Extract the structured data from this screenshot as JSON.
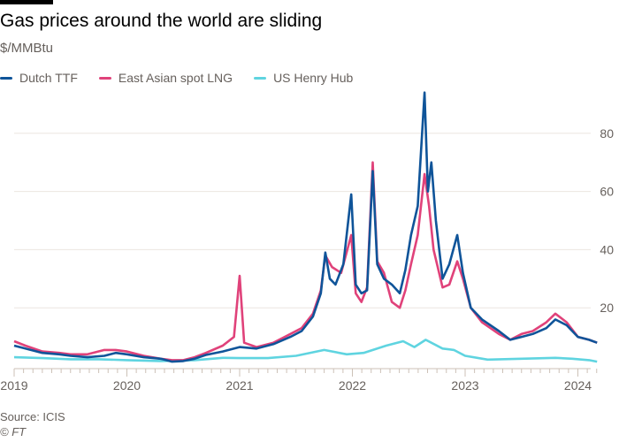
{
  "chart_data": {
    "type": "line",
    "title": "Gas prices around the world are sliding",
    "subtitle": "$/MMBtu",
    "xlabel": "",
    "ylabel": "",
    "xlim": [
      2019,
      2024.17
    ],
    "ylim": [
      0,
      95
    ],
    "x_ticks": [
      "2019",
      "2020",
      "2021",
      "2022",
      "2023",
      "2024"
    ],
    "y_ticks": [
      "20",
      "40",
      "60",
      "80"
    ],
    "grid": "horizontal",
    "legend_position": "top",
    "series": [
      {
        "name": "Dutch TTF",
        "color": "#0f5499",
        "points": [
          [
            2019.0,
            7
          ],
          [
            2019.1,
            6
          ],
          [
            2019.25,
            4.5
          ],
          [
            2019.4,
            4
          ],
          [
            2019.5,
            3.5
          ],
          [
            2019.65,
            3
          ],
          [
            2019.8,
            3.5
          ],
          [
            2019.9,
            4.5
          ],
          [
            2020.0,
            4
          ],
          [
            2020.15,
            3
          ],
          [
            2020.3,
            2.5
          ],
          [
            2020.4,
            1.5
          ],
          [
            2020.5,
            1.7
          ],
          [
            2020.6,
            2.5
          ],
          [
            2020.7,
            3.8
          ],
          [
            2020.85,
            5
          ],
          [
            2021.0,
            6.5
          ],
          [
            2021.15,
            6
          ],
          [
            2021.3,
            7.5
          ],
          [
            2021.45,
            10
          ],
          [
            2021.55,
            12
          ],
          [
            2021.65,
            17
          ],
          [
            2021.72,
            25
          ],
          [
            2021.76,
            39
          ],
          [
            2021.8,
            30
          ],
          [
            2021.85,
            28
          ],
          [
            2021.92,
            35
          ],
          [
            2021.99,
            59
          ],
          [
            2022.03,
            28
          ],
          [
            2022.08,
            25
          ],
          [
            2022.13,
            26
          ],
          [
            2022.18,
            67
          ],
          [
            2022.22,
            35
          ],
          [
            2022.28,
            30
          ],
          [
            2022.35,
            28
          ],
          [
            2022.42,
            25
          ],
          [
            2022.47,
            33
          ],
          [
            2022.52,
            45
          ],
          [
            2022.58,
            55
          ],
          [
            2022.64,
            94
          ],
          [
            2022.67,
            60
          ],
          [
            2022.7,
            70
          ],
          [
            2022.74,
            50
          ],
          [
            2022.8,
            30
          ],
          [
            2022.86,
            35
          ],
          [
            2022.93,
            45
          ],
          [
            2022.98,
            32
          ],
          [
            2023.05,
            20
          ],
          [
            2023.15,
            16
          ],
          [
            2023.3,
            12
          ],
          [
            2023.4,
            9
          ],
          [
            2023.5,
            10
          ],
          [
            2023.6,
            11
          ],
          [
            2023.72,
            13
          ],
          [
            2023.8,
            16
          ],
          [
            2023.9,
            14
          ],
          [
            2024.0,
            10
          ],
          [
            2024.1,
            9
          ],
          [
            2024.17,
            8
          ]
        ]
      },
      {
        "name": "East Asian spot LNG",
        "color": "#e0427a",
        "points": [
          [
            2019.0,
            8.5
          ],
          [
            2019.1,
            7
          ],
          [
            2019.25,
            5
          ],
          [
            2019.4,
            4.5
          ],
          [
            2019.5,
            4
          ],
          [
            2019.65,
            4
          ],
          [
            2019.8,
            5.5
          ],
          [
            2019.9,
            5.5
          ],
          [
            2020.0,
            5
          ],
          [
            2020.15,
            3.5
          ],
          [
            2020.3,
            2.5
          ],
          [
            2020.4,
            2
          ],
          [
            2020.5,
            2
          ],
          [
            2020.6,
            3
          ],
          [
            2020.7,
            4.5
          ],
          [
            2020.85,
            7
          ],
          [
            2020.95,
            10
          ],
          [
            2021.0,
            31
          ],
          [
            2021.04,
            8
          ],
          [
            2021.15,
            6.5
          ],
          [
            2021.3,
            8
          ],
          [
            2021.45,
            11
          ],
          [
            2021.55,
            13
          ],
          [
            2021.65,
            18
          ],
          [
            2021.72,
            26
          ],
          [
            2021.76,
            38
          ],
          [
            2021.82,
            34
          ],
          [
            2021.9,
            32
          ],
          [
            2021.99,
            45
          ],
          [
            2022.03,
            25
          ],
          [
            2022.08,
            22
          ],
          [
            2022.13,
            27
          ],
          [
            2022.18,
            70
          ],
          [
            2022.22,
            36
          ],
          [
            2022.28,
            32
          ],
          [
            2022.35,
            22
          ],
          [
            2022.42,
            20
          ],
          [
            2022.47,
            26
          ],
          [
            2022.52,
            35
          ],
          [
            2022.58,
            45
          ],
          [
            2022.64,
            66
          ],
          [
            2022.68,
            55
          ],
          [
            2022.72,
            40
          ],
          [
            2022.8,
            27
          ],
          [
            2022.86,
            28
          ],
          [
            2022.93,
            36
          ],
          [
            2022.98,
            30
          ],
          [
            2023.05,
            20
          ],
          [
            2023.15,
            15
          ],
          [
            2023.3,
            11
          ],
          [
            2023.4,
            9
          ],
          [
            2023.5,
            11
          ],
          [
            2023.6,
            12
          ],
          [
            2023.72,
            15
          ],
          [
            2023.8,
            18
          ],
          [
            2023.9,
            15
          ],
          [
            2024.0,
            10
          ],
          [
            2024.1,
            9
          ],
          [
            2024.17,
            8
          ]
        ]
      },
      {
        "name": "US Henry Hub",
        "color": "#5fd4e0",
        "points": [
          [
            2019.0,
            3
          ],
          [
            2019.25,
            2.7
          ],
          [
            2019.5,
            2.3
          ],
          [
            2019.75,
            2.3
          ],
          [
            2020.0,
            2
          ],
          [
            2020.3,
            1.7
          ],
          [
            2020.6,
            2
          ],
          [
            2020.85,
            2.8
          ],
          [
            2021.0,
            2.7
          ],
          [
            2021.25,
            2.7
          ],
          [
            2021.5,
            3.5
          ],
          [
            2021.75,
            5.5
          ],
          [
            2021.95,
            4
          ],
          [
            2022.1,
            4.5
          ],
          [
            2022.3,
            7
          ],
          [
            2022.45,
            8.5
          ],
          [
            2022.55,
            6.5
          ],
          [
            2022.65,
            9
          ],
          [
            2022.8,
            6
          ],
          [
            2022.9,
            5.5
          ],
          [
            2023.0,
            3.5
          ],
          [
            2023.2,
            2.2
          ],
          [
            2023.5,
            2.5
          ],
          [
            2023.8,
            2.8
          ],
          [
            2023.95,
            2.5
          ],
          [
            2024.1,
            2
          ],
          [
            2024.17,
            1.5
          ]
        ]
      }
    ]
  },
  "footer": {
    "source": "Source: ICIS",
    "credit": "© FT"
  }
}
